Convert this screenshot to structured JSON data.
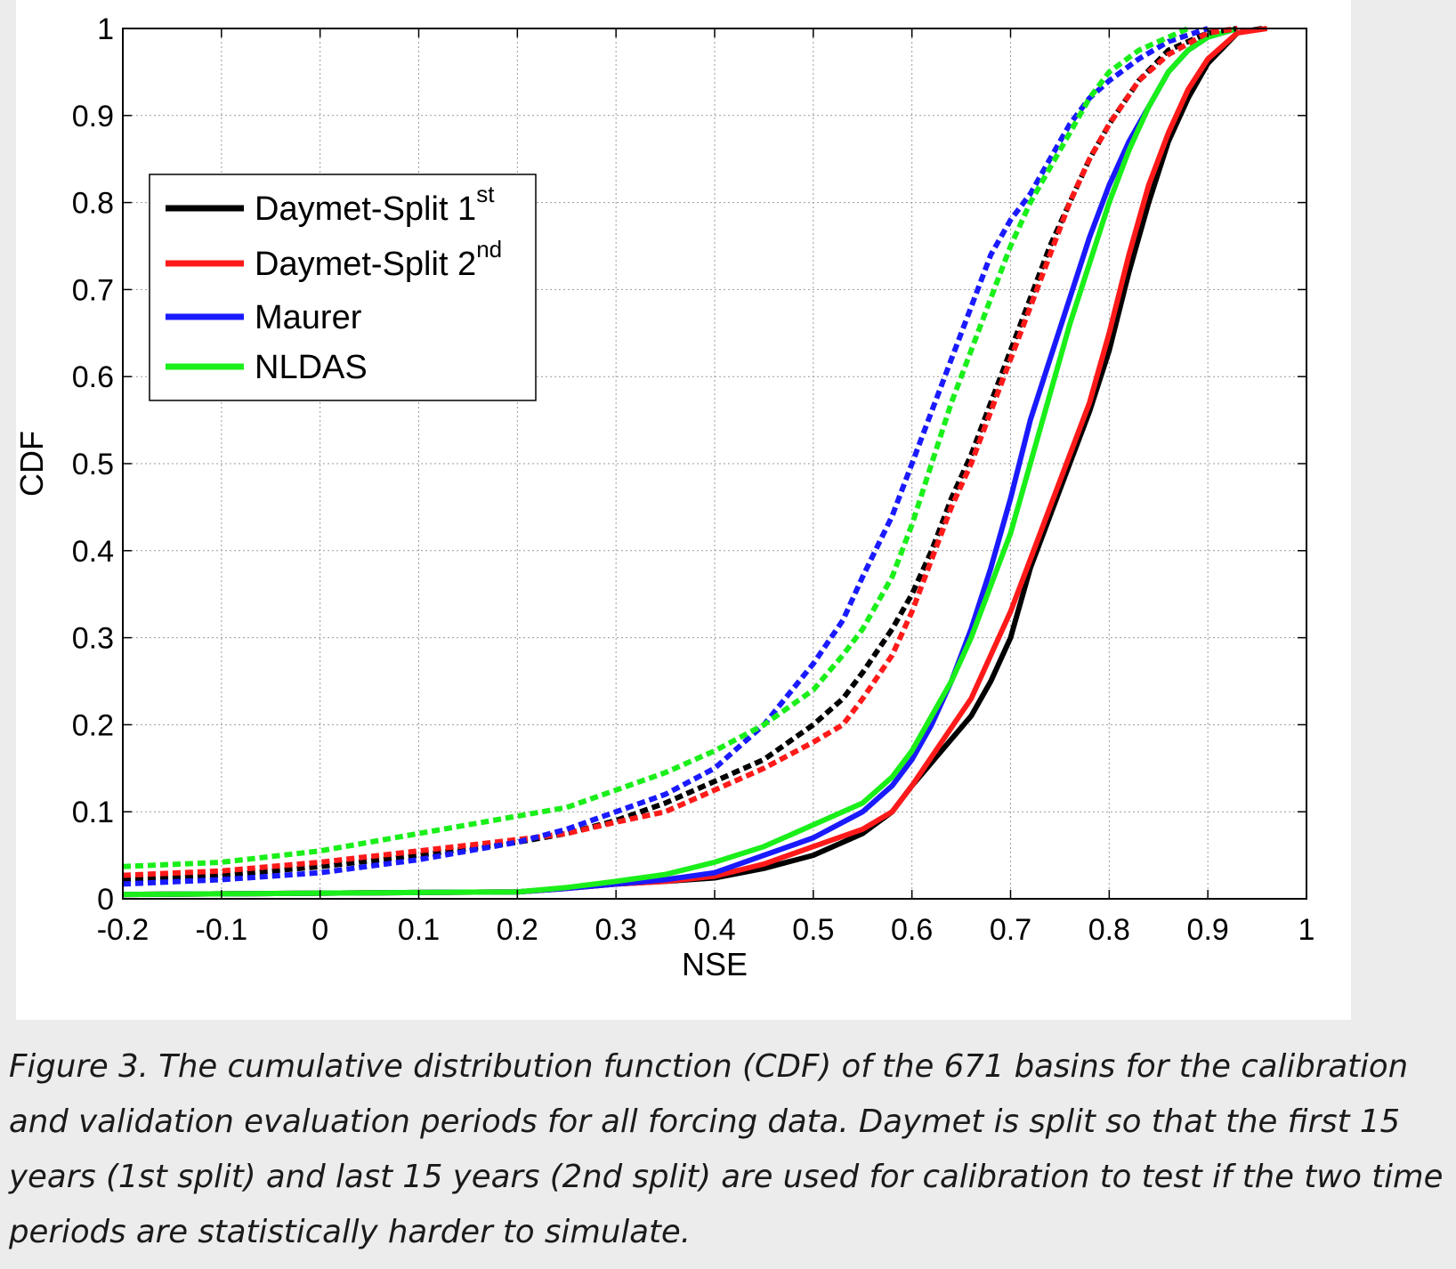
{
  "figure": {
    "caption": "Figure 3. The cumulative distribution function (CDF) of the 671 basins for the calibration and validation evaluation periods for all forcing data. Daymet is split so that the first 15 years (1st split) and last 15 years (2nd split) are used for calibration to test if the two time periods are statistically harder to simulate."
  },
  "colors": {
    "black": "#000000",
    "red": "#ff1a1a",
    "blue": "#1a1aff",
    "green": "#1aef1a"
  },
  "chart_data": {
    "type": "line",
    "xlabel": "NSE",
    "ylabel": "CDF",
    "xlim": [
      -0.2,
      1
    ],
    "ylim": [
      0,
      1
    ],
    "xticks": [
      "-0.2",
      "-0.1",
      "0",
      "0.1",
      "0.2",
      "0.3",
      "0.4",
      "0.5",
      "0.6",
      "0.7",
      "0.8",
      "0.9",
      "1"
    ],
    "yticks": [
      "0",
      "0.1",
      "0.2",
      "0.3",
      "0.4",
      "0.5",
      "0.6",
      "0.7",
      "0.8",
      "0.9",
      "1"
    ],
    "grid": true,
    "legend_position": "upper-left",
    "legend": [
      {
        "label": "Daymet-Split 1",
        "sup": "st",
        "color": "black"
      },
      {
        "label": "Daymet-Split 2",
        "sup": "nd",
        "color": "red"
      },
      {
        "label": "Maurer",
        "color": "blue"
      },
      {
        "label": "NLDAS",
        "color": "green"
      }
    ],
    "series": [
      {
        "legend_index": 0,
        "color": "black",
        "style": "solid",
        "period": "calibration",
        "points": [
          [
            -0.2,
            0.005
          ],
          [
            0.2,
            0.008
          ],
          [
            0.25,
            0.012
          ],
          [
            0.3,
            0.017
          ],
          [
            0.35,
            0.02
          ],
          [
            0.4,
            0.024
          ],
          [
            0.45,
            0.035
          ],
          [
            0.5,
            0.05
          ],
          [
            0.55,
            0.075
          ],
          [
            0.58,
            0.1
          ],
          [
            0.6,
            0.13
          ],
          [
            0.63,
            0.17
          ],
          [
            0.66,
            0.21
          ],
          [
            0.68,
            0.25
          ],
          [
            0.7,
            0.3
          ],
          [
            0.72,
            0.38
          ],
          [
            0.74,
            0.44
          ],
          [
            0.76,
            0.5
          ],
          [
            0.78,
            0.56
          ],
          [
            0.8,
            0.63
          ],
          [
            0.82,
            0.72
          ],
          [
            0.84,
            0.8
          ],
          [
            0.86,
            0.87
          ],
          [
            0.88,
            0.92
          ],
          [
            0.9,
            0.96
          ],
          [
            0.93,
            0.995
          ],
          [
            0.955,
            1.0
          ]
        ]
      },
      {
        "legend_index": 1,
        "color": "red",
        "style": "solid",
        "period": "calibration",
        "points": [
          [
            -0.2,
            0.005
          ],
          [
            0.2,
            0.008
          ],
          [
            0.25,
            0.012
          ],
          [
            0.3,
            0.017
          ],
          [
            0.35,
            0.02
          ],
          [
            0.4,
            0.026
          ],
          [
            0.45,
            0.04
          ],
          [
            0.5,
            0.06
          ],
          [
            0.55,
            0.08
          ],
          [
            0.58,
            0.1
          ],
          [
            0.6,
            0.13
          ],
          [
            0.63,
            0.18
          ],
          [
            0.66,
            0.23
          ],
          [
            0.68,
            0.28
          ],
          [
            0.7,
            0.33
          ],
          [
            0.72,
            0.39
          ],
          [
            0.74,
            0.45
          ],
          [
            0.76,
            0.51
          ],
          [
            0.78,
            0.57
          ],
          [
            0.8,
            0.65
          ],
          [
            0.82,
            0.74
          ],
          [
            0.84,
            0.82
          ],
          [
            0.86,
            0.88
          ],
          [
            0.88,
            0.93
          ],
          [
            0.9,
            0.965
          ],
          [
            0.93,
            0.995
          ],
          [
            0.96,
            1.0
          ]
        ]
      },
      {
        "legend_index": 2,
        "color": "blue",
        "style": "solid",
        "period": "calibration",
        "points": [
          [
            -0.2,
            0.005
          ],
          [
            0.2,
            0.008
          ],
          [
            0.25,
            0.012
          ],
          [
            0.3,
            0.017
          ],
          [
            0.35,
            0.022
          ],
          [
            0.4,
            0.03
          ],
          [
            0.45,
            0.05
          ],
          [
            0.5,
            0.07
          ],
          [
            0.55,
            0.1
          ],
          [
            0.58,
            0.13
          ],
          [
            0.6,
            0.16
          ],
          [
            0.62,
            0.2
          ],
          [
            0.64,
            0.25
          ],
          [
            0.66,
            0.31
          ],
          [
            0.68,
            0.38
          ],
          [
            0.7,
            0.46
          ],
          [
            0.72,
            0.55
          ],
          [
            0.74,
            0.62
          ],
          [
            0.76,
            0.69
          ],
          [
            0.78,
            0.76
          ],
          [
            0.8,
            0.82
          ],
          [
            0.82,
            0.87
          ],
          [
            0.84,
            0.91
          ],
          [
            0.86,
            0.95
          ],
          [
            0.88,
            0.975
          ],
          [
            0.9,
            0.99
          ],
          [
            0.93,
            1.0
          ]
        ]
      },
      {
        "legend_index": 3,
        "color": "green",
        "style": "solid",
        "period": "calibration",
        "points": [
          [
            -0.2,
            0.005
          ],
          [
            0.2,
            0.008
          ],
          [
            0.25,
            0.013
          ],
          [
            0.3,
            0.02
          ],
          [
            0.35,
            0.028
          ],
          [
            0.4,
            0.042
          ],
          [
            0.45,
            0.06
          ],
          [
            0.5,
            0.085
          ],
          [
            0.55,
            0.11
          ],
          [
            0.58,
            0.14
          ],
          [
            0.6,
            0.17
          ],
          [
            0.62,
            0.21
          ],
          [
            0.64,
            0.25
          ],
          [
            0.66,
            0.3
          ],
          [
            0.68,
            0.36
          ],
          [
            0.7,
            0.42
          ],
          [
            0.72,
            0.5
          ],
          [
            0.74,
            0.58
          ],
          [
            0.76,
            0.66
          ],
          [
            0.78,
            0.73
          ],
          [
            0.8,
            0.8
          ],
          [
            0.82,
            0.86
          ],
          [
            0.84,
            0.91
          ],
          [
            0.86,
            0.95
          ],
          [
            0.88,
            0.975
          ],
          [
            0.9,
            0.99
          ],
          [
            0.93,
            1.0
          ]
        ]
      },
      {
        "legend_index": 0,
        "color": "black",
        "style": "dashed",
        "period": "validation",
        "points": [
          [
            -0.2,
            0.022
          ],
          [
            -0.1,
            0.027
          ],
          [
            0.0,
            0.037
          ],
          [
            0.1,
            0.05
          ],
          [
            0.2,
            0.065
          ],
          [
            0.25,
            0.075
          ],
          [
            0.3,
            0.09
          ],
          [
            0.35,
            0.11
          ],
          [
            0.4,
            0.135
          ],
          [
            0.45,
            0.16
          ],
          [
            0.5,
            0.2
          ],
          [
            0.53,
            0.23
          ],
          [
            0.55,
            0.26
          ],
          [
            0.58,
            0.31
          ],
          [
            0.6,
            0.35
          ],
          [
            0.62,
            0.4
          ],
          [
            0.64,
            0.46
          ],
          [
            0.66,
            0.51
          ],
          [
            0.68,
            0.57
          ],
          [
            0.7,
            0.63
          ],
          [
            0.72,
            0.69
          ],
          [
            0.74,
            0.75
          ],
          [
            0.76,
            0.8
          ],
          [
            0.78,
            0.85
          ],
          [
            0.8,
            0.89
          ],
          [
            0.83,
            0.94
          ],
          [
            0.86,
            0.975
          ],
          [
            0.9,
            0.995
          ],
          [
            0.93,
            1.0
          ]
        ]
      },
      {
        "legend_index": 1,
        "color": "red",
        "style": "dashed",
        "period": "validation",
        "points": [
          [
            -0.2,
            0.027
          ],
          [
            -0.1,
            0.032
          ],
          [
            0.0,
            0.042
          ],
          [
            0.1,
            0.055
          ],
          [
            0.2,
            0.068
          ],
          [
            0.25,
            0.075
          ],
          [
            0.3,
            0.088
          ],
          [
            0.35,
            0.1
          ],
          [
            0.4,
            0.125
          ],
          [
            0.45,
            0.15
          ],
          [
            0.5,
            0.18
          ],
          [
            0.53,
            0.2
          ],
          [
            0.55,
            0.23
          ],
          [
            0.58,
            0.28
          ],
          [
            0.6,
            0.33
          ],
          [
            0.62,
            0.39
          ],
          [
            0.64,
            0.45
          ],
          [
            0.66,
            0.5
          ],
          [
            0.68,
            0.56
          ],
          [
            0.7,
            0.62
          ],
          [
            0.72,
            0.68
          ],
          [
            0.74,
            0.74
          ],
          [
            0.76,
            0.8
          ],
          [
            0.78,
            0.85
          ],
          [
            0.8,
            0.89
          ],
          [
            0.83,
            0.94
          ],
          [
            0.86,
            0.97
          ],
          [
            0.9,
            0.995
          ],
          [
            0.93,
            1.0
          ]
        ]
      },
      {
        "legend_index": 2,
        "color": "blue",
        "style": "dashed",
        "period": "validation",
        "points": [
          [
            -0.2,
            0.017
          ],
          [
            -0.1,
            0.022
          ],
          [
            0.0,
            0.03
          ],
          [
            0.1,
            0.045
          ],
          [
            0.2,
            0.065
          ],
          [
            0.25,
            0.08
          ],
          [
            0.3,
            0.1
          ],
          [
            0.35,
            0.12
          ],
          [
            0.4,
            0.15
          ],
          [
            0.45,
            0.2
          ],
          [
            0.5,
            0.27
          ],
          [
            0.53,
            0.32
          ],
          [
            0.55,
            0.37
          ],
          [
            0.58,
            0.44
          ],
          [
            0.6,
            0.5
          ],
          [
            0.62,
            0.56
          ],
          [
            0.64,
            0.62
          ],
          [
            0.66,
            0.68
          ],
          [
            0.68,
            0.74
          ],
          [
            0.7,
            0.78
          ],
          [
            0.72,
            0.81
          ],
          [
            0.74,
            0.85
          ],
          [
            0.76,
            0.89
          ],
          [
            0.78,
            0.92
          ],
          [
            0.8,
            0.94
          ],
          [
            0.83,
            0.965
          ],
          [
            0.86,
            0.985
          ],
          [
            0.9,
            1.0
          ]
        ]
      },
      {
        "legend_index": 3,
        "color": "green",
        "style": "dashed",
        "period": "validation",
        "points": [
          [
            -0.2,
            0.037
          ],
          [
            -0.1,
            0.042
          ],
          [
            0.0,
            0.055
          ],
          [
            0.1,
            0.075
          ],
          [
            0.2,
            0.095
          ],
          [
            0.25,
            0.105
          ],
          [
            0.3,
            0.125
          ],
          [
            0.35,
            0.145
          ],
          [
            0.4,
            0.17
          ],
          [
            0.45,
            0.2
          ],
          [
            0.5,
            0.24
          ],
          [
            0.53,
            0.28
          ],
          [
            0.55,
            0.31
          ],
          [
            0.58,
            0.37
          ],
          [
            0.6,
            0.43
          ],
          [
            0.62,
            0.5
          ],
          [
            0.64,
            0.57
          ],
          [
            0.66,
            0.63
          ],
          [
            0.68,
            0.69
          ],
          [
            0.7,
            0.75
          ],
          [
            0.72,
            0.8
          ],
          [
            0.74,
            0.84
          ],
          [
            0.76,
            0.88
          ],
          [
            0.78,
            0.92
          ],
          [
            0.8,
            0.95
          ],
          [
            0.83,
            0.975
          ],
          [
            0.86,
            0.99
          ],
          [
            0.88,
            1.0
          ]
        ]
      }
    ]
  }
}
